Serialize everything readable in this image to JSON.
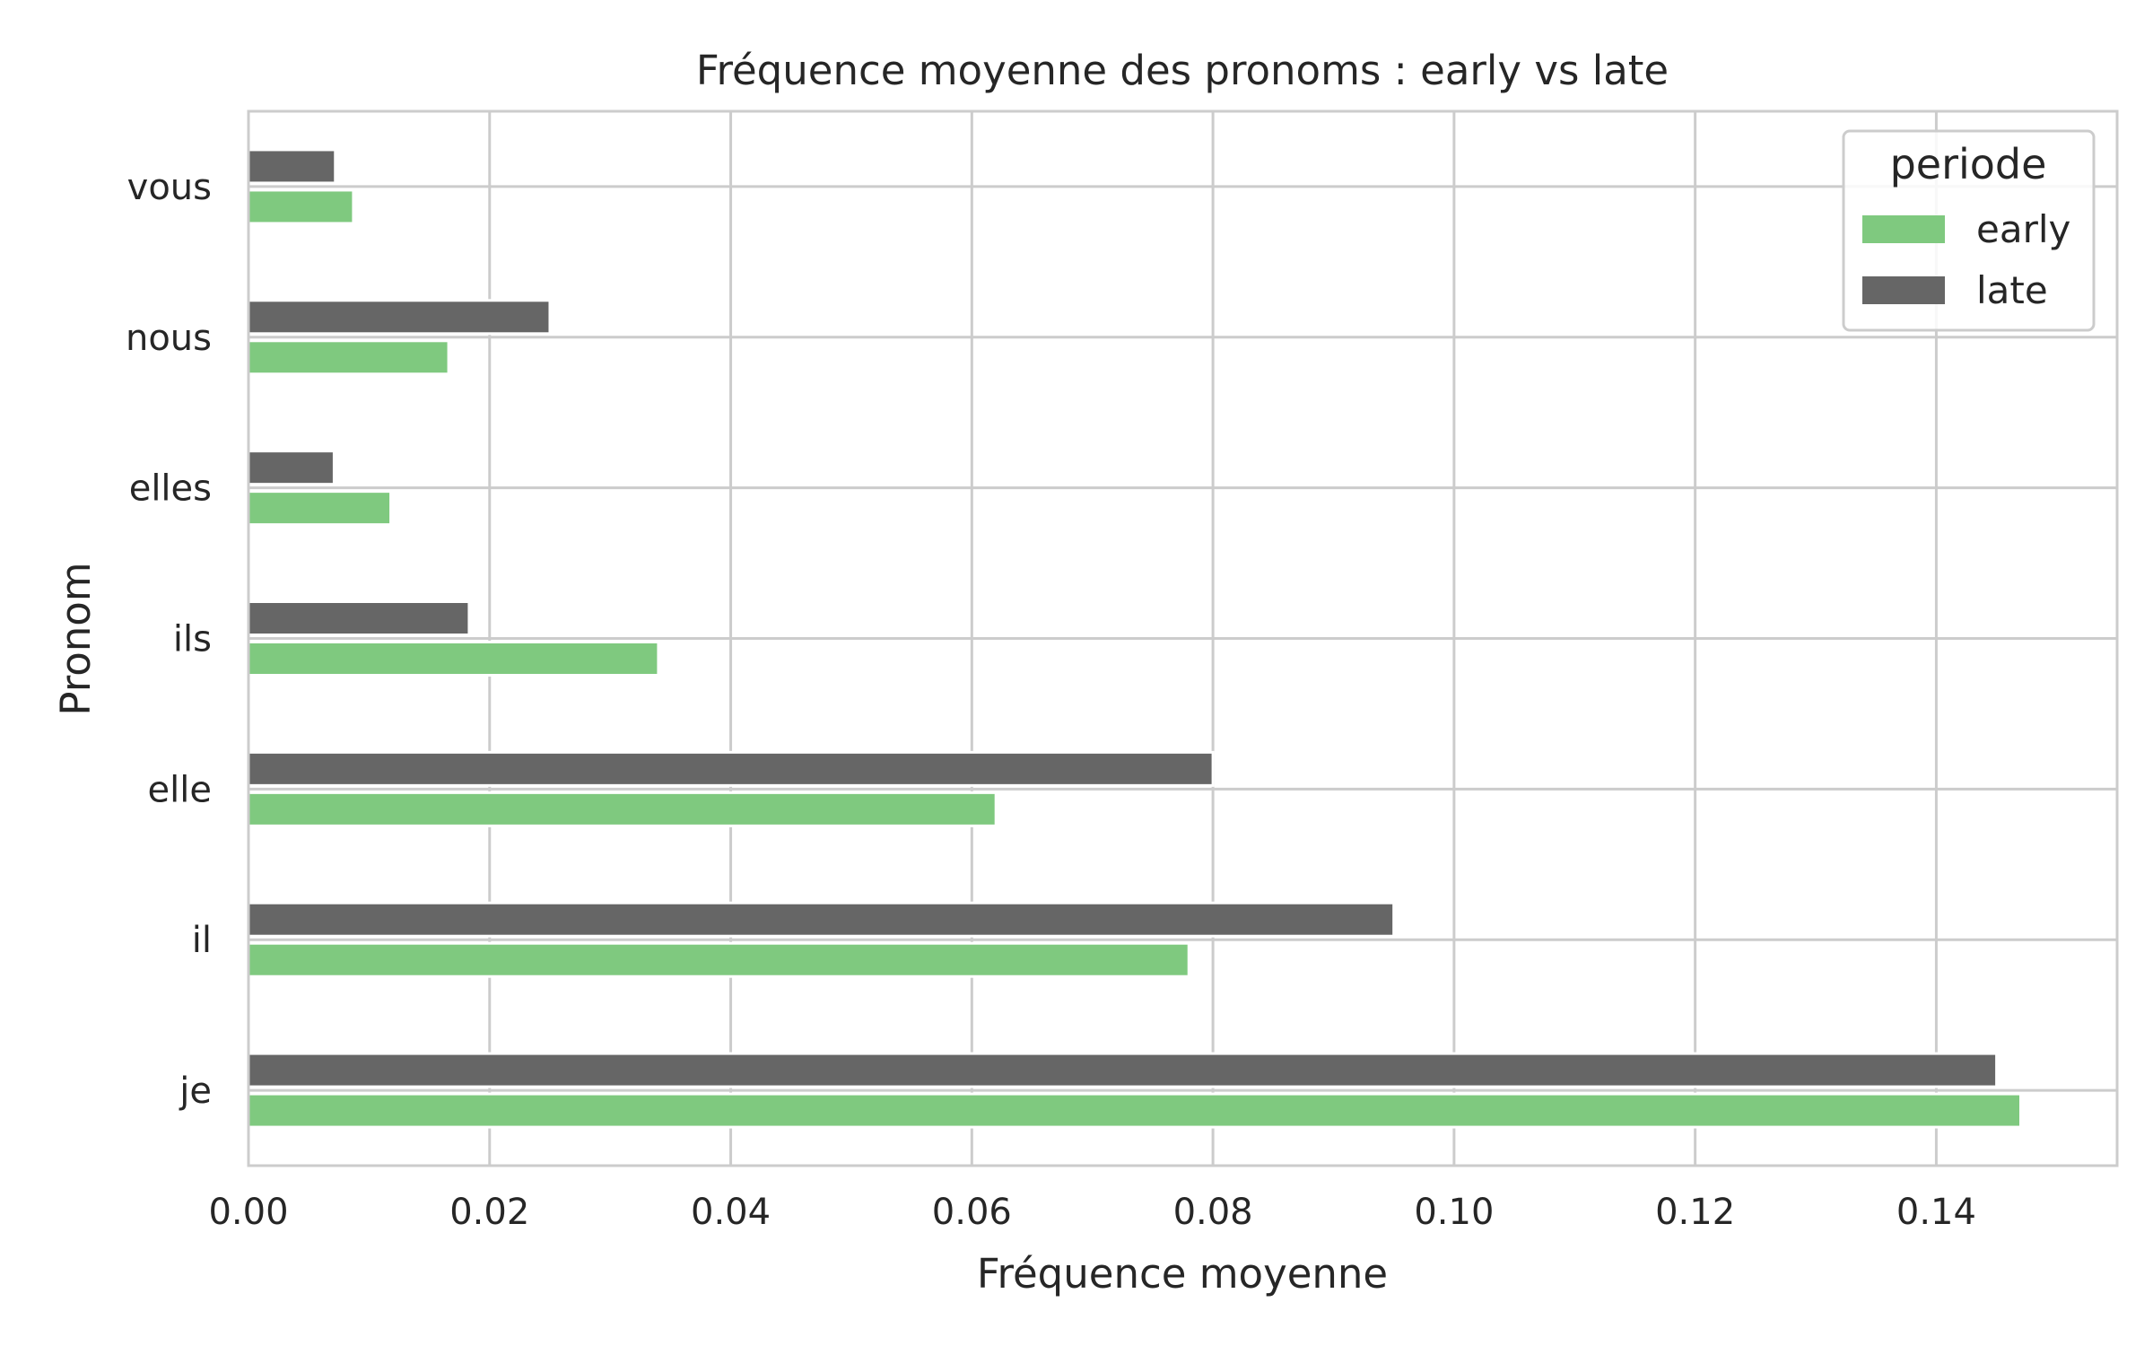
{
  "chart_data": {
    "type": "bar",
    "orientation": "horizontal",
    "title": "Fréquence moyenne des pronoms : early vs late",
    "xlabel": "Fréquence moyenne",
    "ylabel": "Pronom",
    "categories": [
      "je",
      "il",
      "elle",
      "ils",
      "elles",
      "nous",
      "vous"
    ],
    "xlim": [
      0,
      0.155
    ],
    "xticks": [
      0.0,
      0.02,
      0.04,
      0.06,
      0.08,
      0.1,
      0.12,
      0.14
    ],
    "xtick_labels": [
      "0.00",
      "0.02",
      "0.04",
      "0.06",
      "0.08",
      "0.10",
      "0.12",
      "0.14"
    ],
    "grid": true,
    "legend": {
      "title": "periode",
      "placement": "top-right"
    },
    "series": [
      {
        "name": "early",
        "color": "#7fc97f",
        "values": [
          0.147,
          0.078,
          0.062,
          0.034,
          0.0118,
          0.0166,
          0.0087
        ]
      },
      {
        "name": "late",
        "color": "#666666",
        "values": [
          0.145,
          0.095,
          0.08,
          0.0183,
          0.0071,
          0.025,
          0.0072
        ]
      }
    ]
  }
}
